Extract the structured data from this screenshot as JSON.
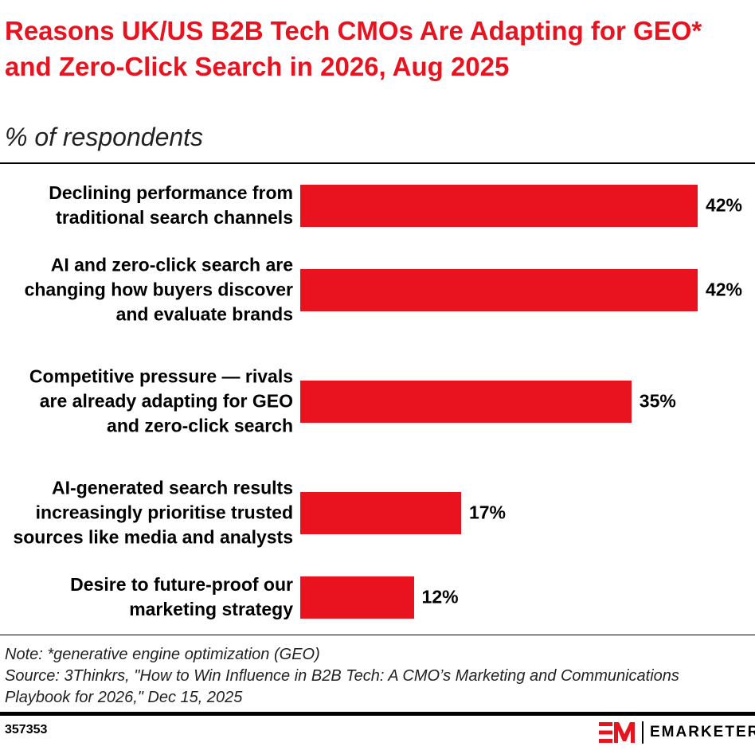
{
  "title": "Reasons UK/US B2B Tech CMOs Are Adapting for GEO* and Zero-Click Search in 2026, Aug 2025",
  "subtitle": "% of respondents",
  "chart_data": {
    "type": "bar",
    "orientation": "horizontal",
    "categories": [
      "Declining performance from traditional search channels",
      "AI and zero-click search are changing how buyers discover and evaluate brands",
      "Competitive pressure — rivals are already adapting for GEO and zero-click search",
      "AI-generated search results increasingly prioritise trusted sources like media and analysts",
      "Desire to future-proof our marketing strategy"
    ],
    "values": [
      42,
      42,
      35,
      17,
      12
    ],
    "data_labels": [
      "42%",
      "42%",
      "35%",
      "17%",
      "12%"
    ],
    "bar_color": "#e8131f",
    "grid": false
  },
  "footer": {
    "note": "Note: *generative engine optimization (GEO)",
    "source": "Source: 3Thinkrs, \"How to Win Influence in B2B Tech: A CMO’s Marketing and Communications Playbook for 2026,\" Dec 15, 2025",
    "id": "357353",
    "brand": "EMARKETER",
    "brand_color": "#e8131f"
  }
}
